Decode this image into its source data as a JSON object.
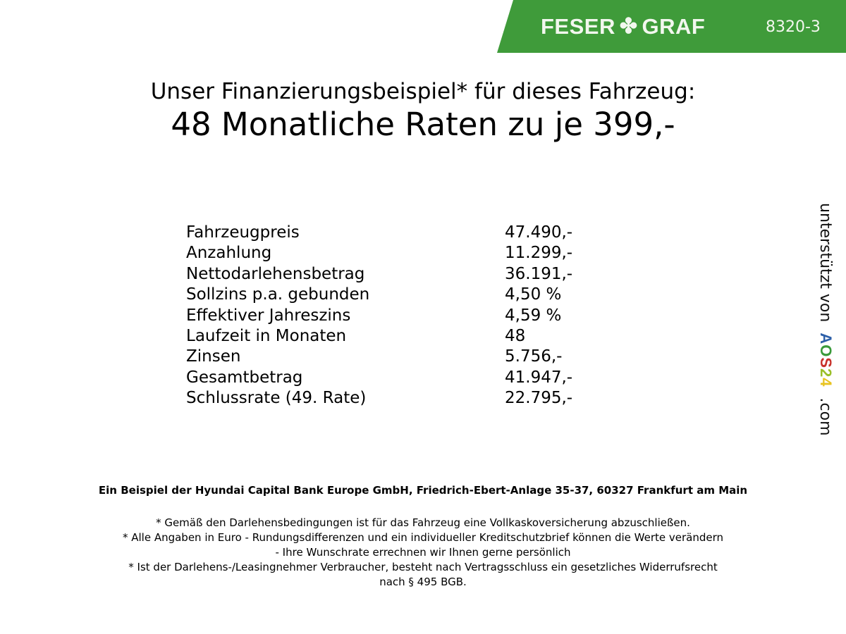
{
  "header": {
    "brand": "FESER",
    "brand2": "GRAF",
    "logo_icon": "clover-icon",
    "code": "8320-3",
    "color": "#3f9b3a"
  },
  "title": {
    "line1": "Unser Finanzierungsbeispiel* für dieses Fahrzeug:",
    "line2": "48 Monatliche Raten zu je 399,-"
  },
  "rows": [
    {
      "label": "Fahrzeugpreis",
      "value": "47.490,-"
    },
    {
      "label": "Anzahlung",
      "value": "11.299,-"
    },
    {
      "label": "Nettodarlehensbetrag",
      "value": "36.191,-"
    },
    {
      "label": "Sollzins p.a. gebunden",
      "value": "4,50 %"
    },
    {
      "label": "Effektiver Jahreszins",
      "value": "4,59 %"
    },
    {
      "label": "Laufzeit in Monaten",
      "value": "48"
    },
    {
      "label": "Zinsen",
      "value": "5.756,-"
    },
    {
      "label": "Gesamtbetrag",
      "value": "41.947,-"
    },
    {
      "label": "Schlussrate (49. Rate)",
      "value": "22.795,-"
    }
  ],
  "sponsor": {
    "prefix": "unterstützt von",
    "brand": [
      "A",
      "O",
      "S",
      "2",
      "4"
    ],
    "brand_colors": [
      "#2d5fa8",
      "#3a9a3a",
      "#c8312a",
      "#9bbf2a",
      "#e8c320"
    ],
    "suffix": ".com"
  },
  "footer": {
    "bank": "Ein Beispiel der Hyundai Capital Bank Europe GmbH, Friedrich-Ebert-Anlage 35-37, 60327 Frankfurt am Main",
    "note1": "* Gemäß den Darlehensbedingungen ist für das Fahrzeug eine Vollkaskoversicherung abzuschließen.",
    "note2a": "* Alle Angaben in Euro - Rundungsdifferenzen und ein individueller Kreditschutzbrief können die Werte verändern",
    "note2b": "- Ihre Wunschrate errechnen wir Ihnen gerne persönlich",
    "note3a": "* Ist der Darlehens-/Leasingnehmer Verbraucher, besteht nach Vertragsschluss ein gesetzliches Widerrufsrecht",
    "note3b": "nach § 495 BGB."
  }
}
